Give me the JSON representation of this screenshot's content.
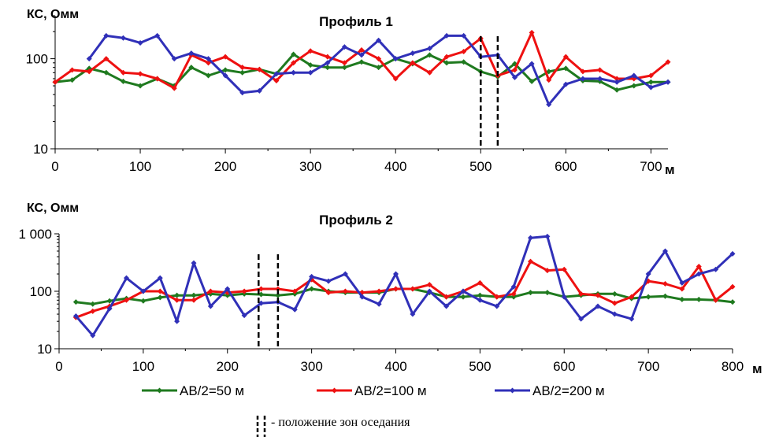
{
  "legend": [
    {
      "label": "AB/2=50 м",
      "color": "#1f7a1f"
    },
    {
      "label": "AB/2=100 м",
      "color": "#ee1111"
    },
    {
      "label": "AB/2=200 м",
      "color": "#3030b8"
    }
  ],
  "note": "- положение  зон оседания",
  "chart_data": [
    {
      "type": "line",
      "title": "Профиль 1",
      "ylabel": "КС, Омм",
      "x_unit": "м",
      "yscale": "log",
      "ylim": [
        10,
        300
      ],
      "xlim": [
        0,
        720
      ],
      "x_ticks": [
        0,
        100,
        200,
        300,
        400,
        500,
        600,
        700
      ],
      "x_tick_labels": [
        "0",
        "100",
        "200",
        "300",
        "400",
        "500",
        "600",
        "700"
      ],
      "y_ticks": [
        10,
        100
      ],
      "y_tick_labels": [
        "10",
        "100"
      ],
      "subsidence_zones_x": [
        500,
        520
      ],
      "series": [
        {
          "name": "AB/2=50 м",
          "color": "#1f7a1f",
          "x": [
            0,
            20,
            40,
            60,
            80,
            100,
            120,
            140,
            160,
            180,
            200,
            220,
            240,
            260,
            280,
            300,
            320,
            340,
            360,
            380,
            400,
            420,
            440,
            460,
            480,
            500,
            520,
            540,
            560,
            580,
            600,
            620,
            640,
            660,
            680,
            700,
            720
          ],
          "y": [
            55,
            58,
            78,
            70,
            56,
            50,
            60,
            50,
            80,
            65,
            75,
            70,
            76,
            68,
            112,
            85,
            80,
            80,
            92,
            80,
            100,
            88,
            110,
            90,
            92,
            72,
            63,
            88,
            56,
            72,
            78,
            57,
            56,
            45,
            50,
            55,
            55
          ]
        },
        {
          "name": "AB/2=100 м",
          "color": "#ee1111",
          "x": [
            0,
            20,
            40,
            60,
            80,
            100,
            120,
            140,
            160,
            180,
            200,
            220,
            240,
            260,
            280,
            300,
            320,
            340,
            360,
            380,
            400,
            420,
            440,
            460,
            480,
            500,
            520,
            540,
            560,
            580,
            600,
            620,
            640,
            660,
            680,
            700,
            720
          ],
          "y": [
            55,
            75,
            72,
            100,
            70,
            68,
            60,
            47,
            110,
            90,
            105,
            80,
            76,
            57,
            90,
            122,
            105,
            90,
            125,
            100,
            60,
            90,
            70,
            105,
            120,
            168,
            65,
            75,
            195,
            58,
            105,
            72,
            75,
            60,
            60,
            65,
            92
          ]
        },
        {
          "name": "AB/2=200 м",
          "color": "#3030b8",
          "x": [
            40,
            60,
            80,
            100,
            120,
            140,
            160,
            180,
            200,
            220,
            240,
            260,
            280,
            300,
            320,
            340,
            360,
            380,
            400,
            420,
            440,
            460,
            480,
            500,
            520,
            540,
            560,
            580,
            600,
            620,
            640,
            660,
            680,
            700,
            720
          ],
          "y": [
            100,
            180,
            170,
            150,
            180,
            100,
            115,
            100,
            65,
            42,
            44,
            68,
            70,
            70,
            90,
            135,
            110,
            160,
            100,
            115,
            130,
            180,
            180,
            105,
            110,
            62,
            88,
            31,
            52,
            60,
            60,
            55,
            65,
            48,
            55
          ]
        }
      ]
    },
    {
      "type": "line",
      "title": "Профиль 2",
      "ylabel": "КС, Омм",
      "x_unit": "м",
      "yscale": "log",
      "ylim": [
        10,
        1000
      ],
      "xlim": [
        0,
        800
      ],
      "x_ticks": [
        0,
        100,
        200,
        300,
        400,
        500,
        600,
        700,
        800
      ],
      "x_tick_labels": [
        "0",
        "100",
        "200",
        "300",
        "400",
        "500",
        "600",
        "700",
        "800"
      ],
      "y_ticks": [
        10,
        100,
        1000
      ],
      "y_tick_labels": [
        "10",
        "100",
        "1 000"
      ],
      "subsidence_zones_x": [
        237,
        260
      ],
      "series": [
        {
          "name": "AB/2=50 м",
          "color": "#1f7a1f",
          "x": [
            20,
            40,
            60,
            80,
            100,
            120,
            140,
            160,
            180,
            200,
            220,
            240,
            260,
            280,
            300,
            320,
            340,
            360,
            380,
            400,
            420,
            440,
            460,
            480,
            500,
            520,
            540,
            560,
            580,
            600,
            620,
            640,
            660,
            680,
            700,
            720,
            740,
            760,
            780,
            800
          ],
          "y": [
            65,
            60,
            68,
            75,
            68,
            78,
            85,
            85,
            90,
            85,
            90,
            88,
            85,
            90,
            110,
            100,
            95,
            95,
            95,
            110,
            110,
            95,
            80,
            80,
            85,
            80,
            80,
            95,
            95,
            80,
            85,
            90,
            90,
            75,
            80,
            82,
            72,
            72,
            70,
            65
          ]
        },
        {
          "name": "AB/2=100 м",
          "color": "#ee1111",
          "x": [
            20,
            40,
            60,
            80,
            100,
            120,
            140,
            160,
            180,
            200,
            220,
            240,
            260,
            280,
            300,
            320,
            340,
            360,
            380,
            400,
            420,
            440,
            460,
            480,
            500,
            520,
            540,
            560,
            580,
            600,
            620,
            640,
            660,
            680,
            700,
            720,
            740,
            760,
            780,
            800
          ],
          "y": [
            35,
            45,
            55,
            70,
            100,
            100,
            70,
            70,
            100,
            95,
            100,
            110,
            110,
            100,
            160,
            95,
            100,
            95,
            100,
            110,
            110,
            130,
            80,
            100,
            140,
            80,
            90,
            330,
            230,
            240,
            90,
            85,
            62,
            80,
            150,
            135,
            110,
            270,
            70,
            120
          ]
        },
        {
          "name": "AB/2=200 м",
          "color": "#3030b8",
          "x": [
            20,
            40,
            60,
            80,
            100,
            120,
            140,
            160,
            180,
            200,
            220,
            240,
            260,
            280,
            300,
            320,
            340,
            360,
            380,
            400,
            420,
            440,
            460,
            480,
            500,
            520,
            540,
            560,
            580,
            600,
            620,
            640,
            660,
            680,
            700,
            720,
            740,
            760,
            780,
            800
          ],
          "y": [
            37,
            17,
            50,
            170,
            100,
            170,
            30,
            310,
            55,
            110,
            38,
            62,
            65,
            48,
            180,
            150,
            200,
            80,
            60,
            200,
            40,
            100,
            55,
            100,
            70,
            55,
            120,
            850,
            900,
            80,
            33,
            55,
            40,
            33,
            200,
            500,
            140,
            200,
            240,
            450
          ]
        }
      ]
    }
  ]
}
